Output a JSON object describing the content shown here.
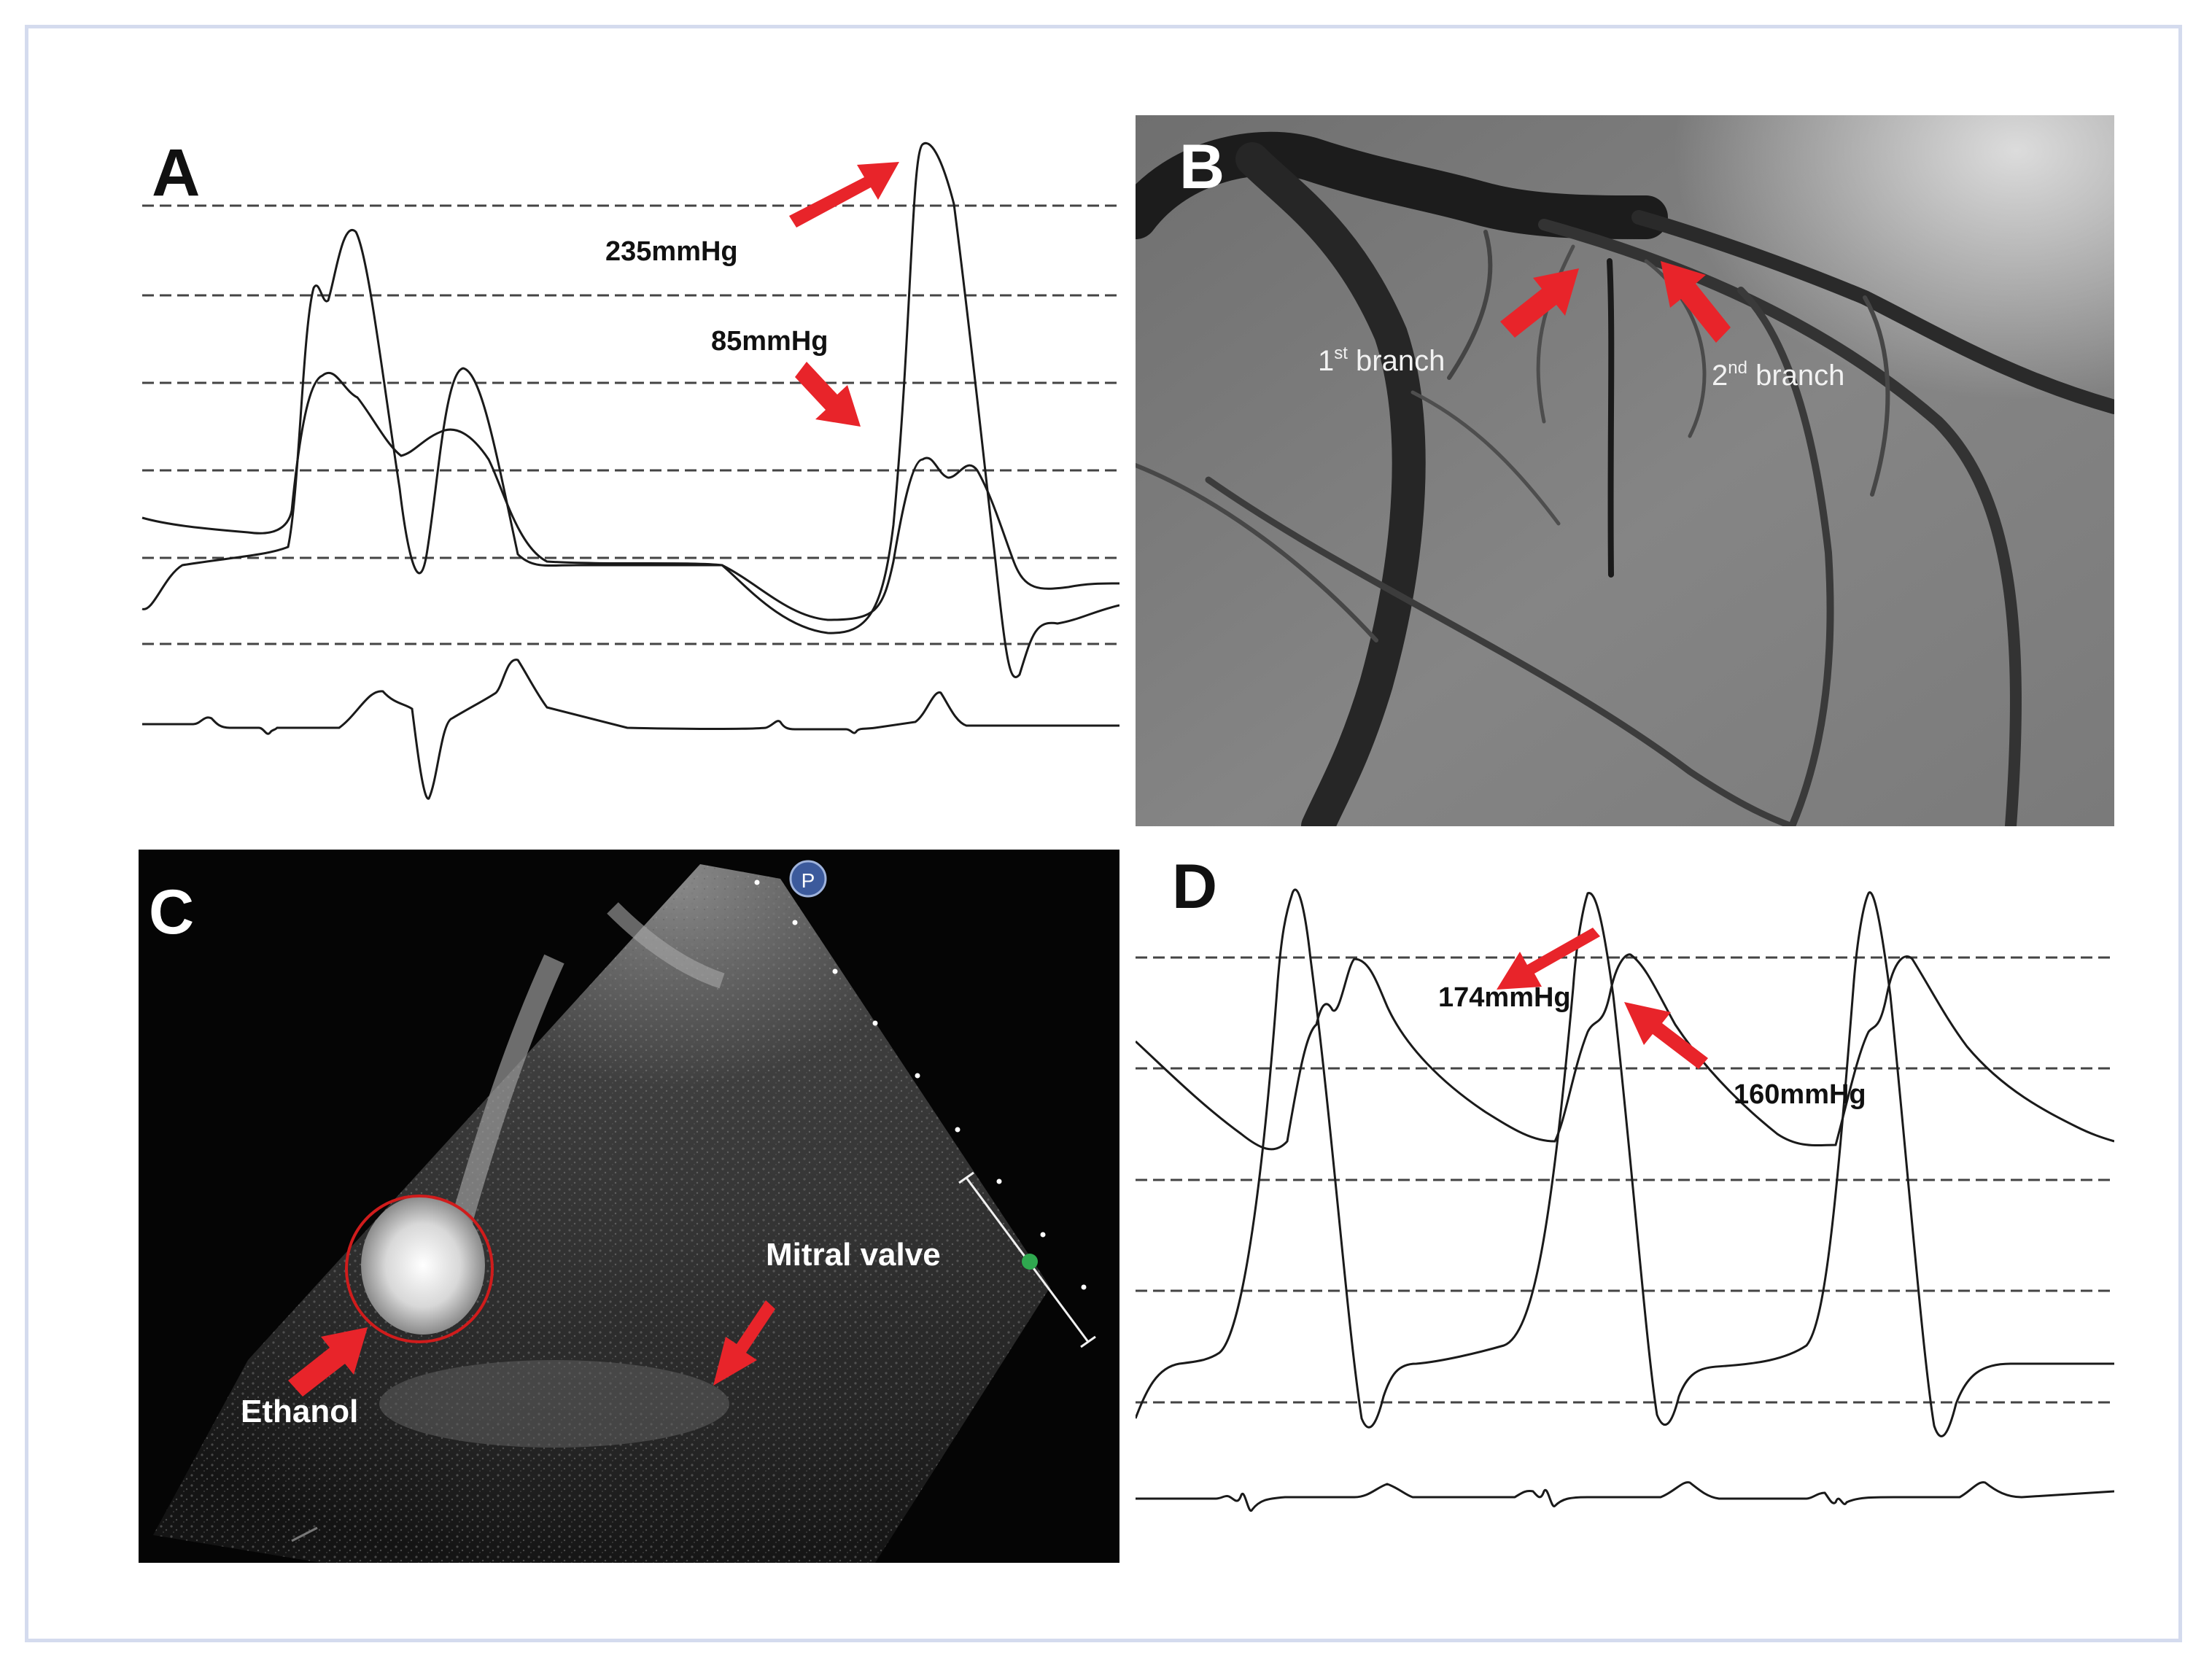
{
  "figure": {
    "panels": [
      {
        "letter": "A",
        "annotations": [
          "235mmHg",
          "85mmHg"
        ]
      },
      {
        "letter": "B",
        "labels": [
          {
            "prefix": "1",
            "superscript": "st",
            "suffix": " branch"
          },
          {
            "prefix": "2",
            "superscript": "nd",
            "suffix": " branch"
          }
        ]
      },
      {
        "letter": "C",
        "labels": [
          "Mitral valve",
          "Ethanol"
        ],
        "probe_marker": "P"
      },
      {
        "letter": "D",
        "annotations": [
          "174mmHg",
          "160mmHg"
        ]
      }
    ]
  },
  "colors": {
    "arrow": "#e8242a",
    "trace": "#1a1a1a",
    "frame": "#d4dbee",
    "echo_circle": "#d01c1c",
    "marker_blue": "#3c5a9c",
    "marker_green": "#2fa84f"
  }
}
